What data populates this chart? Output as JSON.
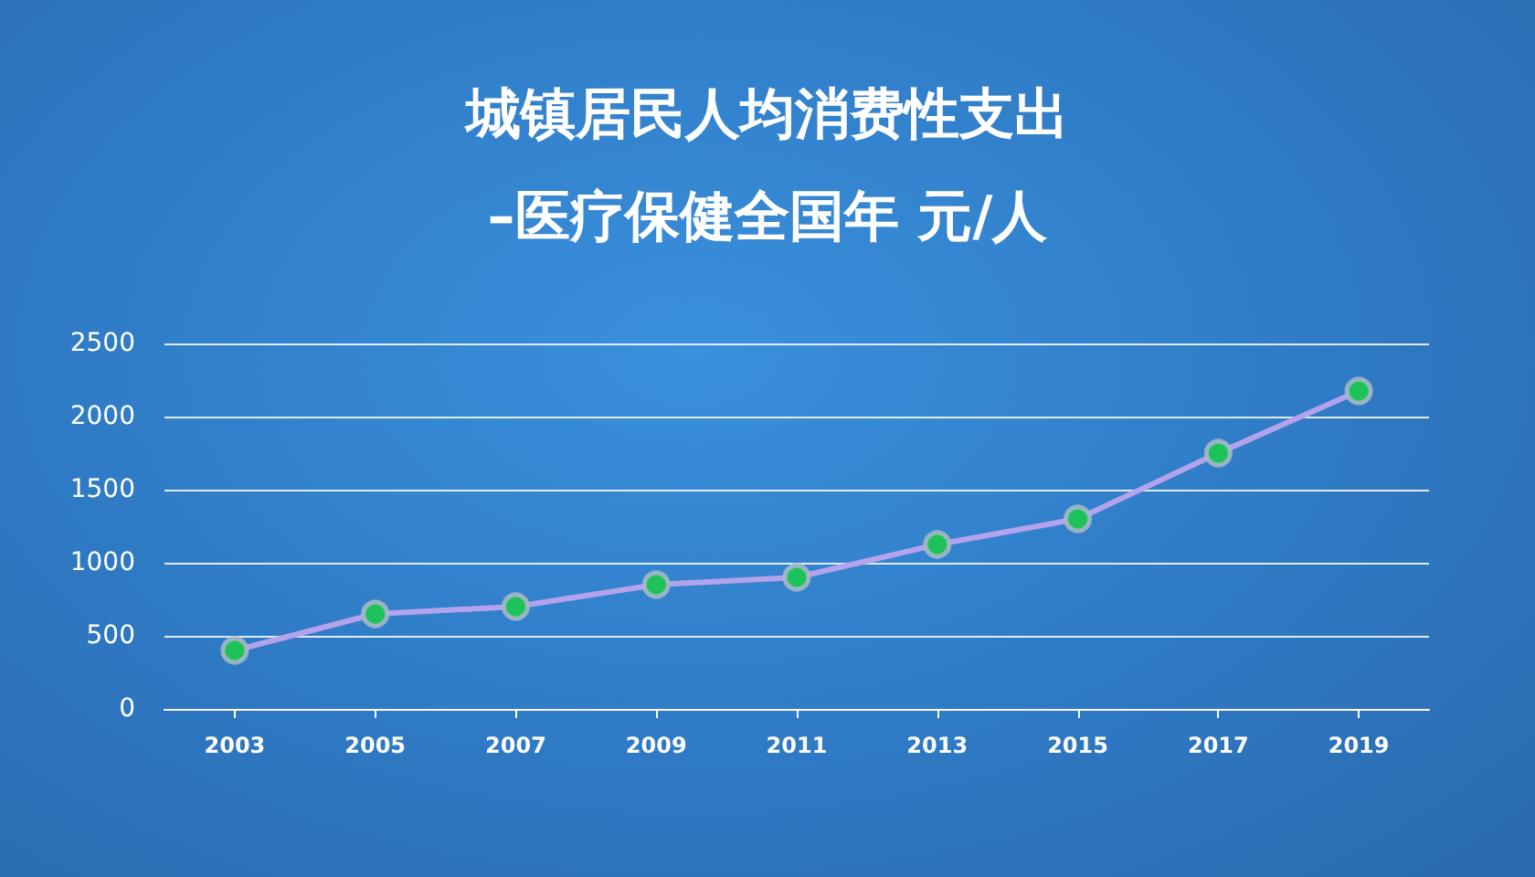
{
  "chart_data": {
    "type": "line",
    "title": "城镇居民人均消费性支出\n–医疗保健全国年 元/人",
    "categories": [
      "2003",
      "2005",
      "2007",
      "2009",
      "2011",
      "2013",
      "2015",
      "2017",
      "2019"
    ],
    "series": [
      {
        "color": "#b3a3ec",
        "values": [
          400,
          650,
          700,
          850,
          900,
          1125,
          1300,
          1750,
          2175
        ]
      }
    ],
    "ylim": [
      0,
      2500
    ],
    "yticks": [
      0,
      500,
      1000,
      1500,
      2000,
      2500
    ],
    "grid": "y",
    "marker": "circle",
    "line_style": "solid"
  }
}
